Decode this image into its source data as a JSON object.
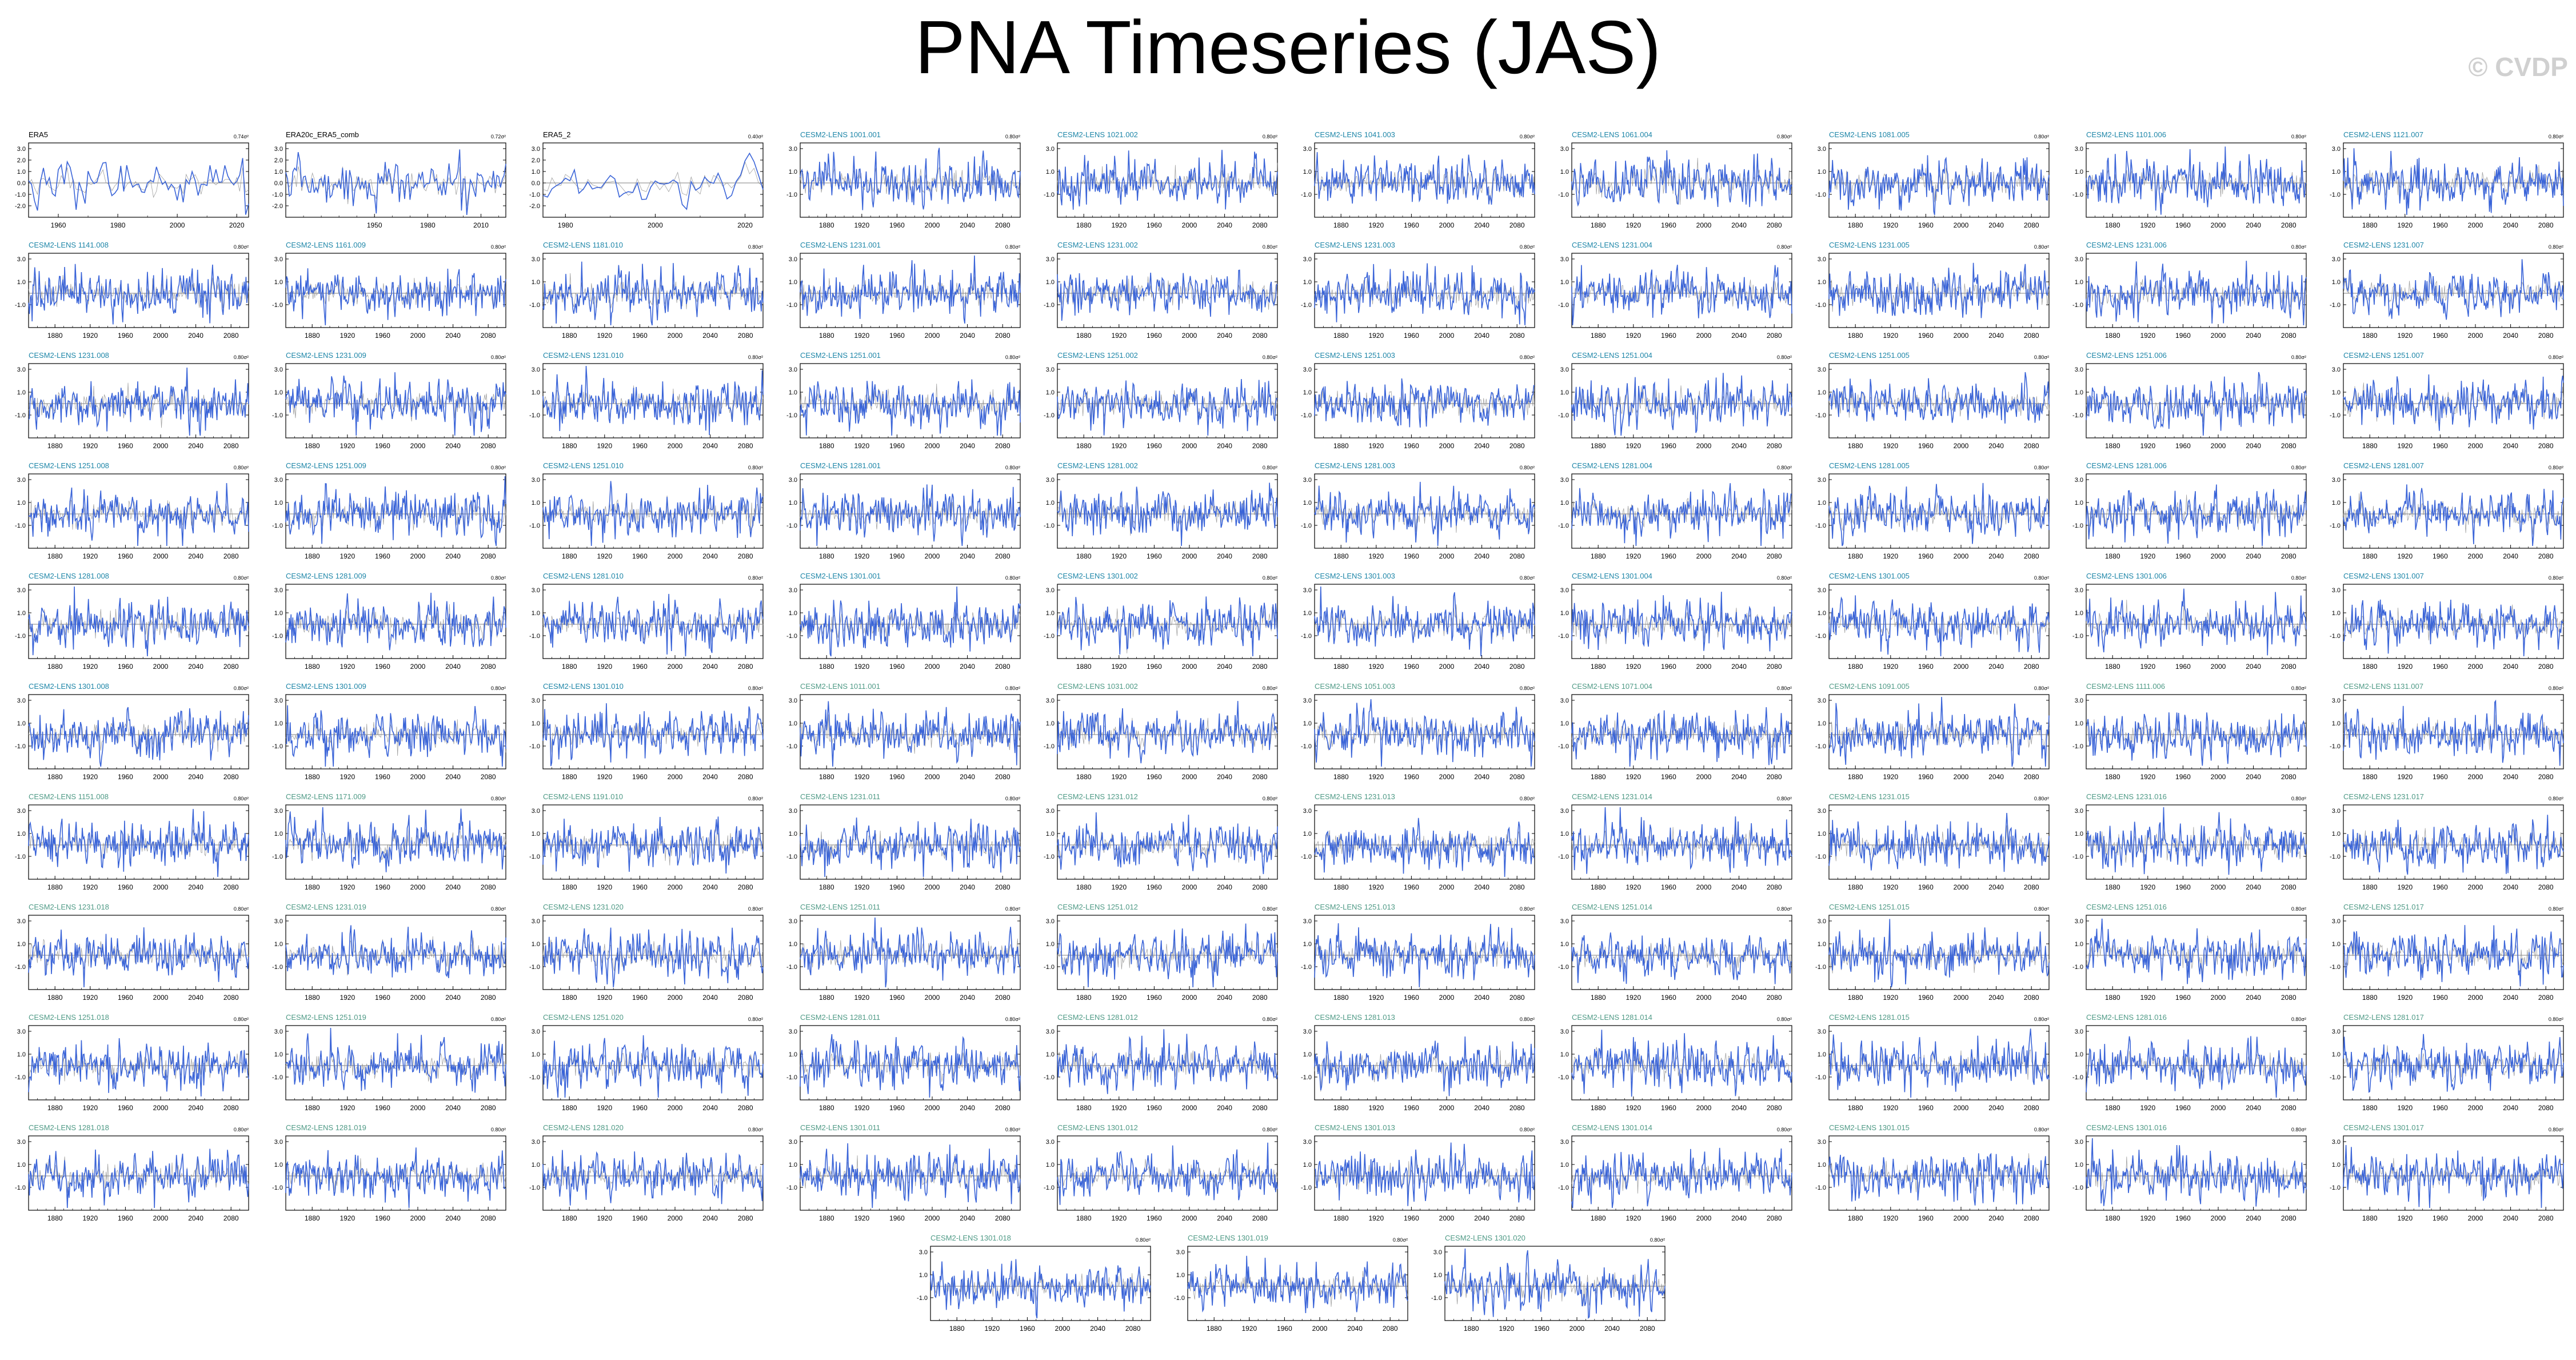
{
  "page": {
    "title": "PNA Timeseries (JAS)",
    "watermark": "© CVDP"
  },
  "colors": {
    "series": "#3a64d8",
    "trend": "#888888",
    "obs_title": "#000000",
    "first_set_title": "#1e86a8",
    "second_set_title": "#4f9a86",
    "axis": "#000000"
  },
  "chart_data": {
    "type": "line",
    "panel_order": "row-major, 10 columns; final row of 3 centered",
    "series_names": [
      "PNA index",
      "reference"
    ],
    "y_ticks": [
      3.0,
      2.0,
      1.0,
      0.0,
      -1.0,
      -2.0
    ],
    "x_ticks_obs": [
      "1960",
      "1980",
      "2000",
      "2020"
    ],
    "x_ticks_obs_20c": [
      "1950",
      "1980",
      "2010"
    ],
    "x_ticks_model": [
      "1880",
      "1920",
      "1960",
      "2000",
      "2040",
      "2080"
    ],
    "panels": [
      {
        "title": "ERA5",
        "set": 0,
        "var_label": "0.74σ²",
        "xlim": [
          1950,
          2024
        ],
        "x_ticks": "x_ticks_obs"
      },
      {
        "title": "ERA20c_ERA5_comb",
        "set": 0,
        "var_label": "0.72σ²",
        "xlim": [
          1900,
          2024
        ],
        "x_ticks": "x_ticks_obs_20c"
      },
      {
        "title": "ERA5_2",
        "set": 0,
        "var_label": "0.40σ²",
        "xlim": [
          1975,
          2024
        ],
        "x_ticks": "x_ticks_obs"
      },
      {
        "title": "CESM2-LENS 1001.001",
        "set": 1,
        "var_label": "0.80σ²"
      },
      {
        "title": "CESM2-LENS 1021.002",
        "set": 1,
        "var_label": "0.80σ²"
      },
      {
        "title": "CESM2-LENS 1041.003",
        "set": 1,
        "var_label": "0.80σ²"
      },
      {
        "title": "CESM2-LENS 1061.004",
        "set": 1,
        "var_label": "0.80σ²"
      },
      {
        "title": "CESM2-LENS 1081.005",
        "set": 1,
        "var_label": "0.80σ²"
      },
      {
        "title": "CESM2-LENS 1101.006",
        "set": 1,
        "var_label": "0.80σ²"
      },
      {
        "title": "CESM2-LENS 1121.007",
        "set": 1,
        "var_label": "0.80σ²"
      },
      {
        "title": "CESM2-LENS 1141.008",
        "set": 1,
        "var_label": "0.80σ²"
      },
      {
        "title": "CESM2-LENS 1161.009",
        "set": 1,
        "var_label": "0.80σ²"
      },
      {
        "title": "CESM2-LENS 1181.010",
        "set": 1,
        "var_label": "0.80σ²"
      },
      {
        "title": "CESM2-LENS 1231.001",
        "set": 1,
        "var_label": "0.80σ²"
      },
      {
        "title": "CESM2-LENS 1231.002",
        "set": 1,
        "var_label": "0.80σ²"
      },
      {
        "title": "CESM2-LENS 1231.003",
        "set": 1,
        "var_label": "0.80σ²"
      },
      {
        "title": "CESM2-LENS 1231.004",
        "set": 1,
        "var_label": "0.80σ²"
      },
      {
        "title": "CESM2-LENS 1231.005",
        "set": 1,
        "var_label": "0.80σ²"
      },
      {
        "title": "CESM2-LENS 1231.006",
        "set": 1,
        "var_label": "0.80σ²"
      },
      {
        "title": "CESM2-LENS 1231.007",
        "set": 1,
        "var_label": "0.80σ²"
      },
      {
        "title": "CESM2-LENS 1231.008",
        "set": 1,
        "var_label": "0.80σ²"
      },
      {
        "title": "CESM2-LENS 1231.009",
        "set": 1,
        "var_label": "0.80σ²"
      },
      {
        "title": "CESM2-LENS 1231.010",
        "set": 1,
        "var_label": "0.80σ²"
      },
      {
        "title": "CESM2-LENS 1251.001",
        "set": 1,
        "var_label": "0.80σ²"
      },
      {
        "title": "CESM2-LENS 1251.002",
        "set": 1,
        "var_label": "0.80σ²"
      },
      {
        "title": "CESM2-LENS 1251.003",
        "set": 1,
        "var_label": "0.80σ²"
      },
      {
        "title": "CESM2-LENS 1251.004",
        "set": 1,
        "var_label": "0.80σ²"
      },
      {
        "title": "CESM2-LENS 1251.005",
        "set": 1,
        "var_label": "0.80σ²"
      },
      {
        "title": "CESM2-LENS 1251.006",
        "set": 1,
        "var_label": "0.80σ²"
      },
      {
        "title": "CESM2-LENS 1251.007",
        "set": 1,
        "var_label": "0.80σ²"
      },
      {
        "title": "CESM2-LENS 1251.008",
        "set": 1,
        "var_label": "0.80σ²"
      },
      {
        "title": "CESM2-LENS 1251.009",
        "set": 1,
        "var_label": "0.80σ²"
      },
      {
        "title": "CESM2-LENS 1251.010",
        "set": 1,
        "var_label": "0.80σ²"
      },
      {
        "title": "CESM2-LENS 1281.001",
        "set": 1,
        "var_label": "0.80σ²"
      },
      {
        "title": "CESM2-LENS 1281.002",
        "set": 1,
        "var_label": "0.80σ²"
      },
      {
        "title": "CESM2-LENS 1281.003",
        "set": 1,
        "var_label": "0.80σ²"
      },
      {
        "title": "CESM2-LENS 1281.004",
        "set": 1,
        "var_label": "0.80σ²"
      },
      {
        "title": "CESM2-LENS 1281.005",
        "set": 1,
        "var_label": "0.80σ²"
      },
      {
        "title": "CESM2-LENS 1281.006",
        "set": 1,
        "var_label": "0.80σ²"
      },
      {
        "title": "CESM2-LENS 1281.007",
        "set": 1,
        "var_label": "0.80σ²"
      },
      {
        "title": "CESM2-LENS 1281.008",
        "set": 1,
        "var_label": "0.80σ²"
      },
      {
        "title": "CESM2-LENS 1281.009",
        "set": 1,
        "var_label": "0.80σ²"
      },
      {
        "title": "CESM2-LENS 1281.010",
        "set": 1,
        "var_label": "0.80σ²"
      },
      {
        "title": "CESM2-LENS 1301.001",
        "set": 1,
        "var_label": "0.80σ²"
      },
      {
        "title": "CESM2-LENS 1301.002",
        "set": 1,
        "var_label": "0.80σ²"
      },
      {
        "title": "CESM2-LENS 1301.003",
        "set": 1,
        "var_label": "0.80σ²"
      },
      {
        "title": "CESM2-LENS 1301.004",
        "set": 1,
        "var_label": "0.80σ²"
      },
      {
        "title": "CESM2-LENS 1301.005",
        "set": 1,
        "var_label": "0.80σ²"
      },
      {
        "title": "CESM2-LENS 1301.006",
        "set": 1,
        "var_label": "0.80σ²"
      },
      {
        "title": "CESM2-LENS 1301.007",
        "set": 1,
        "var_label": "0.80σ²"
      },
      {
        "title": "CESM2-LENS 1301.008",
        "set": 1,
        "var_label": "0.80σ²"
      },
      {
        "title": "CESM2-LENS 1301.009",
        "set": 1,
        "var_label": "0.80σ²"
      },
      {
        "title": "CESM2-LENS 1301.010",
        "set": 1,
        "var_label": "0.80σ²"
      },
      {
        "title": "CESM2-LENS 1011.001",
        "set": 2,
        "var_label": "0.80σ²"
      },
      {
        "title": "CESM2-LENS 1031.002",
        "set": 2,
        "var_label": "0.80σ²"
      },
      {
        "title": "CESM2-LENS 1051.003",
        "set": 2,
        "var_label": "0.80σ²"
      },
      {
        "title": "CESM2-LENS 1071.004",
        "set": 2,
        "var_label": "0.80σ²"
      },
      {
        "title": "CESM2-LENS 1091.005",
        "set": 2,
        "var_label": "0.80σ²"
      },
      {
        "title": "CESM2-LENS 1111.006",
        "set": 2,
        "var_label": "0.80σ²"
      },
      {
        "title": "CESM2-LENS 1131.007",
        "set": 2,
        "var_label": "0.80σ²"
      },
      {
        "title": "CESM2-LENS 1151.008",
        "set": 2,
        "var_label": "0.80σ²"
      },
      {
        "title": "CESM2-LENS 1171.009",
        "set": 2,
        "var_label": "0.80σ²"
      },
      {
        "title": "CESM2-LENS 1191.010",
        "set": 2,
        "var_label": "0.80σ²"
      },
      {
        "title": "CESM2-LENS 1231.011",
        "set": 2,
        "var_label": "0.80σ²"
      },
      {
        "title": "CESM2-LENS 1231.012",
        "set": 2,
        "var_label": "0.80σ²"
      },
      {
        "title": "CESM2-LENS 1231.013",
        "set": 2,
        "var_label": "0.80σ²"
      },
      {
        "title": "CESM2-LENS 1231.014",
        "set": 2,
        "var_label": "0.80σ²"
      },
      {
        "title": "CESM2-LENS 1231.015",
        "set": 2,
        "var_label": "0.80σ²"
      },
      {
        "title": "CESM2-LENS 1231.016",
        "set": 2,
        "var_label": "0.80σ²"
      },
      {
        "title": "CESM2-LENS 1231.017",
        "set": 2,
        "var_label": "0.80σ²"
      },
      {
        "title": "CESM2-LENS 1231.018",
        "set": 2,
        "var_label": "0.80σ²"
      },
      {
        "title": "CESM2-LENS 1231.019",
        "set": 2,
        "var_label": "0.80σ²"
      },
      {
        "title": "CESM2-LENS 1231.020",
        "set": 2,
        "var_label": "0.80σ²"
      },
      {
        "title": "CESM2-LENS 1251.011",
        "set": 2,
        "var_label": "0.80σ²"
      },
      {
        "title": "CESM2-LENS 1251.012",
        "set": 2,
        "var_label": "0.80σ²"
      },
      {
        "title": "CESM2-LENS 1251.013",
        "set": 2,
        "var_label": "0.80σ²"
      },
      {
        "title": "CESM2-LENS 1251.014",
        "set": 2,
        "var_label": "0.80σ²"
      },
      {
        "title": "CESM2-LENS 1251.015",
        "set": 2,
        "var_label": "0.80σ²"
      },
      {
        "title": "CESM2-LENS 1251.016",
        "set": 2,
        "var_label": "0.80σ²"
      },
      {
        "title": "CESM2-LENS 1251.017",
        "set": 2,
        "var_label": "0.80σ²"
      },
      {
        "title": "CESM2-LENS 1251.018",
        "set": 2,
        "var_label": "0.80σ²"
      },
      {
        "title": "CESM2-LENS 1251.019",
        "set": 2,
        "var_label": "0.80σ²"
      },
      {
        "title": "CESM2-LENS 1251.020",
        "set": 2,
        "var_label": "0.80σ²"
      },
      {
        "title": "CESM2-LENS 1281.011",
        "set": 2,
        "var_label": "0.80σ²"
      },
      {
        "title": "CESM2-LENS 1281.012",
        "set": 2,
        "var_label": "0.80σ²"
      },
      {
        "title": "CESM2-LENS 1281.013",
        "set": 2,
        "var_label": "0.80σ²"
      },
      {
        "title": "CESM2-LENS 1281.014",
        "set": 2,
        "var_label": "0.80σ²"
      },
      {
        "title": "CESM2-LENS 1281.015",
        "set": 2,
        "var_label": "0.80σ²"
      },
      {
        "title": "CESM2-LENS 1281.016",
        "set": 2,
        "var_label": "0.80σ²"
      },
      {
        "title": "CESM2-LENS 1281.017",
        "set": 2,
        "var_label": "0.80σ²"
      },
      {
        "title": "CESM2-LENS 1281.018",
        "set": 2,
        "var_label": "0.80σ²"
      },
      {
        "title": "CESM2-LENS 1281.019",
        "set": 2,
        "var_label": "0.80σ²"
      },
      {
        "title": "CESM2-LENS 1281.020",
        "set": 2,
        "var_label": "0.80σ²"
      },
      {
        "title": "CESM2-LENS 1301.011",
        "set": 2,
        "var_label": "0.80σ²"
      },
      {
        "title": "CESM2-LENS 1301.012",
        "set": 2,
        "var_label": "0.80σ²"
      },
      {
        "title": "CESM2-LENS 1301.013",
        "set": 2,
        "var_label": "0.80σ²"
      },
      {
        "title": "CESM2-LENS 1301.014",
        "set": 2,
        "var_label": "0.80σ²"
      },
      {
        "title": "CESM2-LENS 1301.015",
        "set": 2,
        "var_label": "0.80σ²"
      },
      {
        "title": "CESM2-LENS 1301.016",
        "set": 2,
        "var_label": "0.80σ²"
      },
      {
        "title": "CESM2-LENS 1301.017",
        "set": 2,
        "var_label": "0.80σ²"
      },
      {
        "title": "CESM2-LENS 1301.018",
        "set": 2,
        "var_label": "0.80σ²"
      },
      {
        "title": "CESM2-LENS 1301.019",
        "set": 2,
        "var_label": "0.80σ²"
      },
      {
        "title": "CESM2-LENS 1301.020",
        "set": 2,
        "var_label": "0.80σ²"
      }
    ],
    "model_xlim": [
      1850,
      2100
    ],
    "ylim": [
      -3.0,
      3.5
    ]
  }
}
